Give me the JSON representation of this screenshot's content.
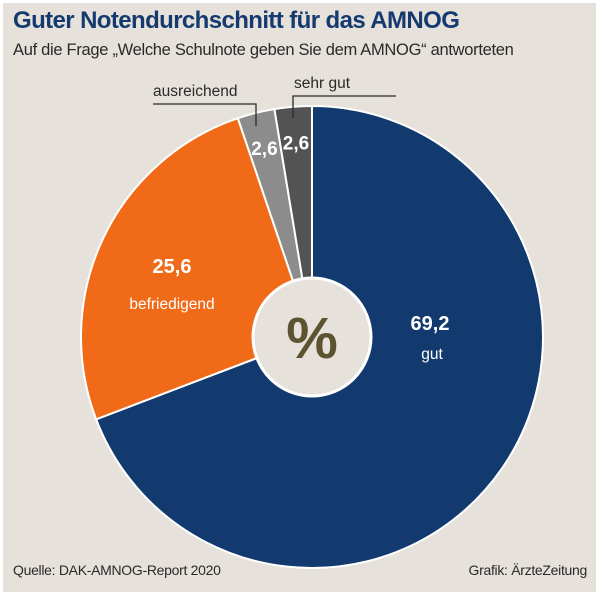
{
  "header": {
    "title": "Guter Notendurchschnitt für das AMNOG",
    "subtitle": "Auf die Frage „Welche Schulnote geben Sie dem AMNOG“ antworteten"
  },
  "footer": {
    "source": "Quelle: DAK-AMNOG-Report 2020",
    "credit": "Grafik: ÄrzteZeitung"
  },
  "center_symbol": "%",
  "chart_data": {
    "type": "pie",
    "title": "Guter Notendurchschnitt für das AMNOG",
    "subtitle": "Auf die Frage „Welche Schulnote geben Sie dem AMNOG“ antworteten",
    "unit": "%",
    "start": "12 o'clock",
    "direction": "clockwise",
    "donut_center_label": "%",
    "slices": [
      {
        "label": "gut",
        "value": 69.2,
        "value_label": "69,2",
        "color": "#133a6e",
        "label_position": "inside"
      },
      {
        "label": "befriedigend",
        "value": 25.6,
        "value_label": "25,6",
        "color": "#f06a18",
        "label_position": "inside"
      },
      {
        "label": "ausreichend",
        "value": 2.6,
        "value_label": "2,6",
        "color": "#8c8c8c",
        "label_position": "outside-leader"
      },
      {
        "label": "sehr gut",
        "value": 2.6,
        "value_label": "2,6",
        "color": "#535353",
        "label_position": "outside-leader"
      }
    ],
    "source": "Quelle: DAK-AMNOG-Report 2020",
    "credit": "Grafik: ÄrzteZeitung"
  }
}
